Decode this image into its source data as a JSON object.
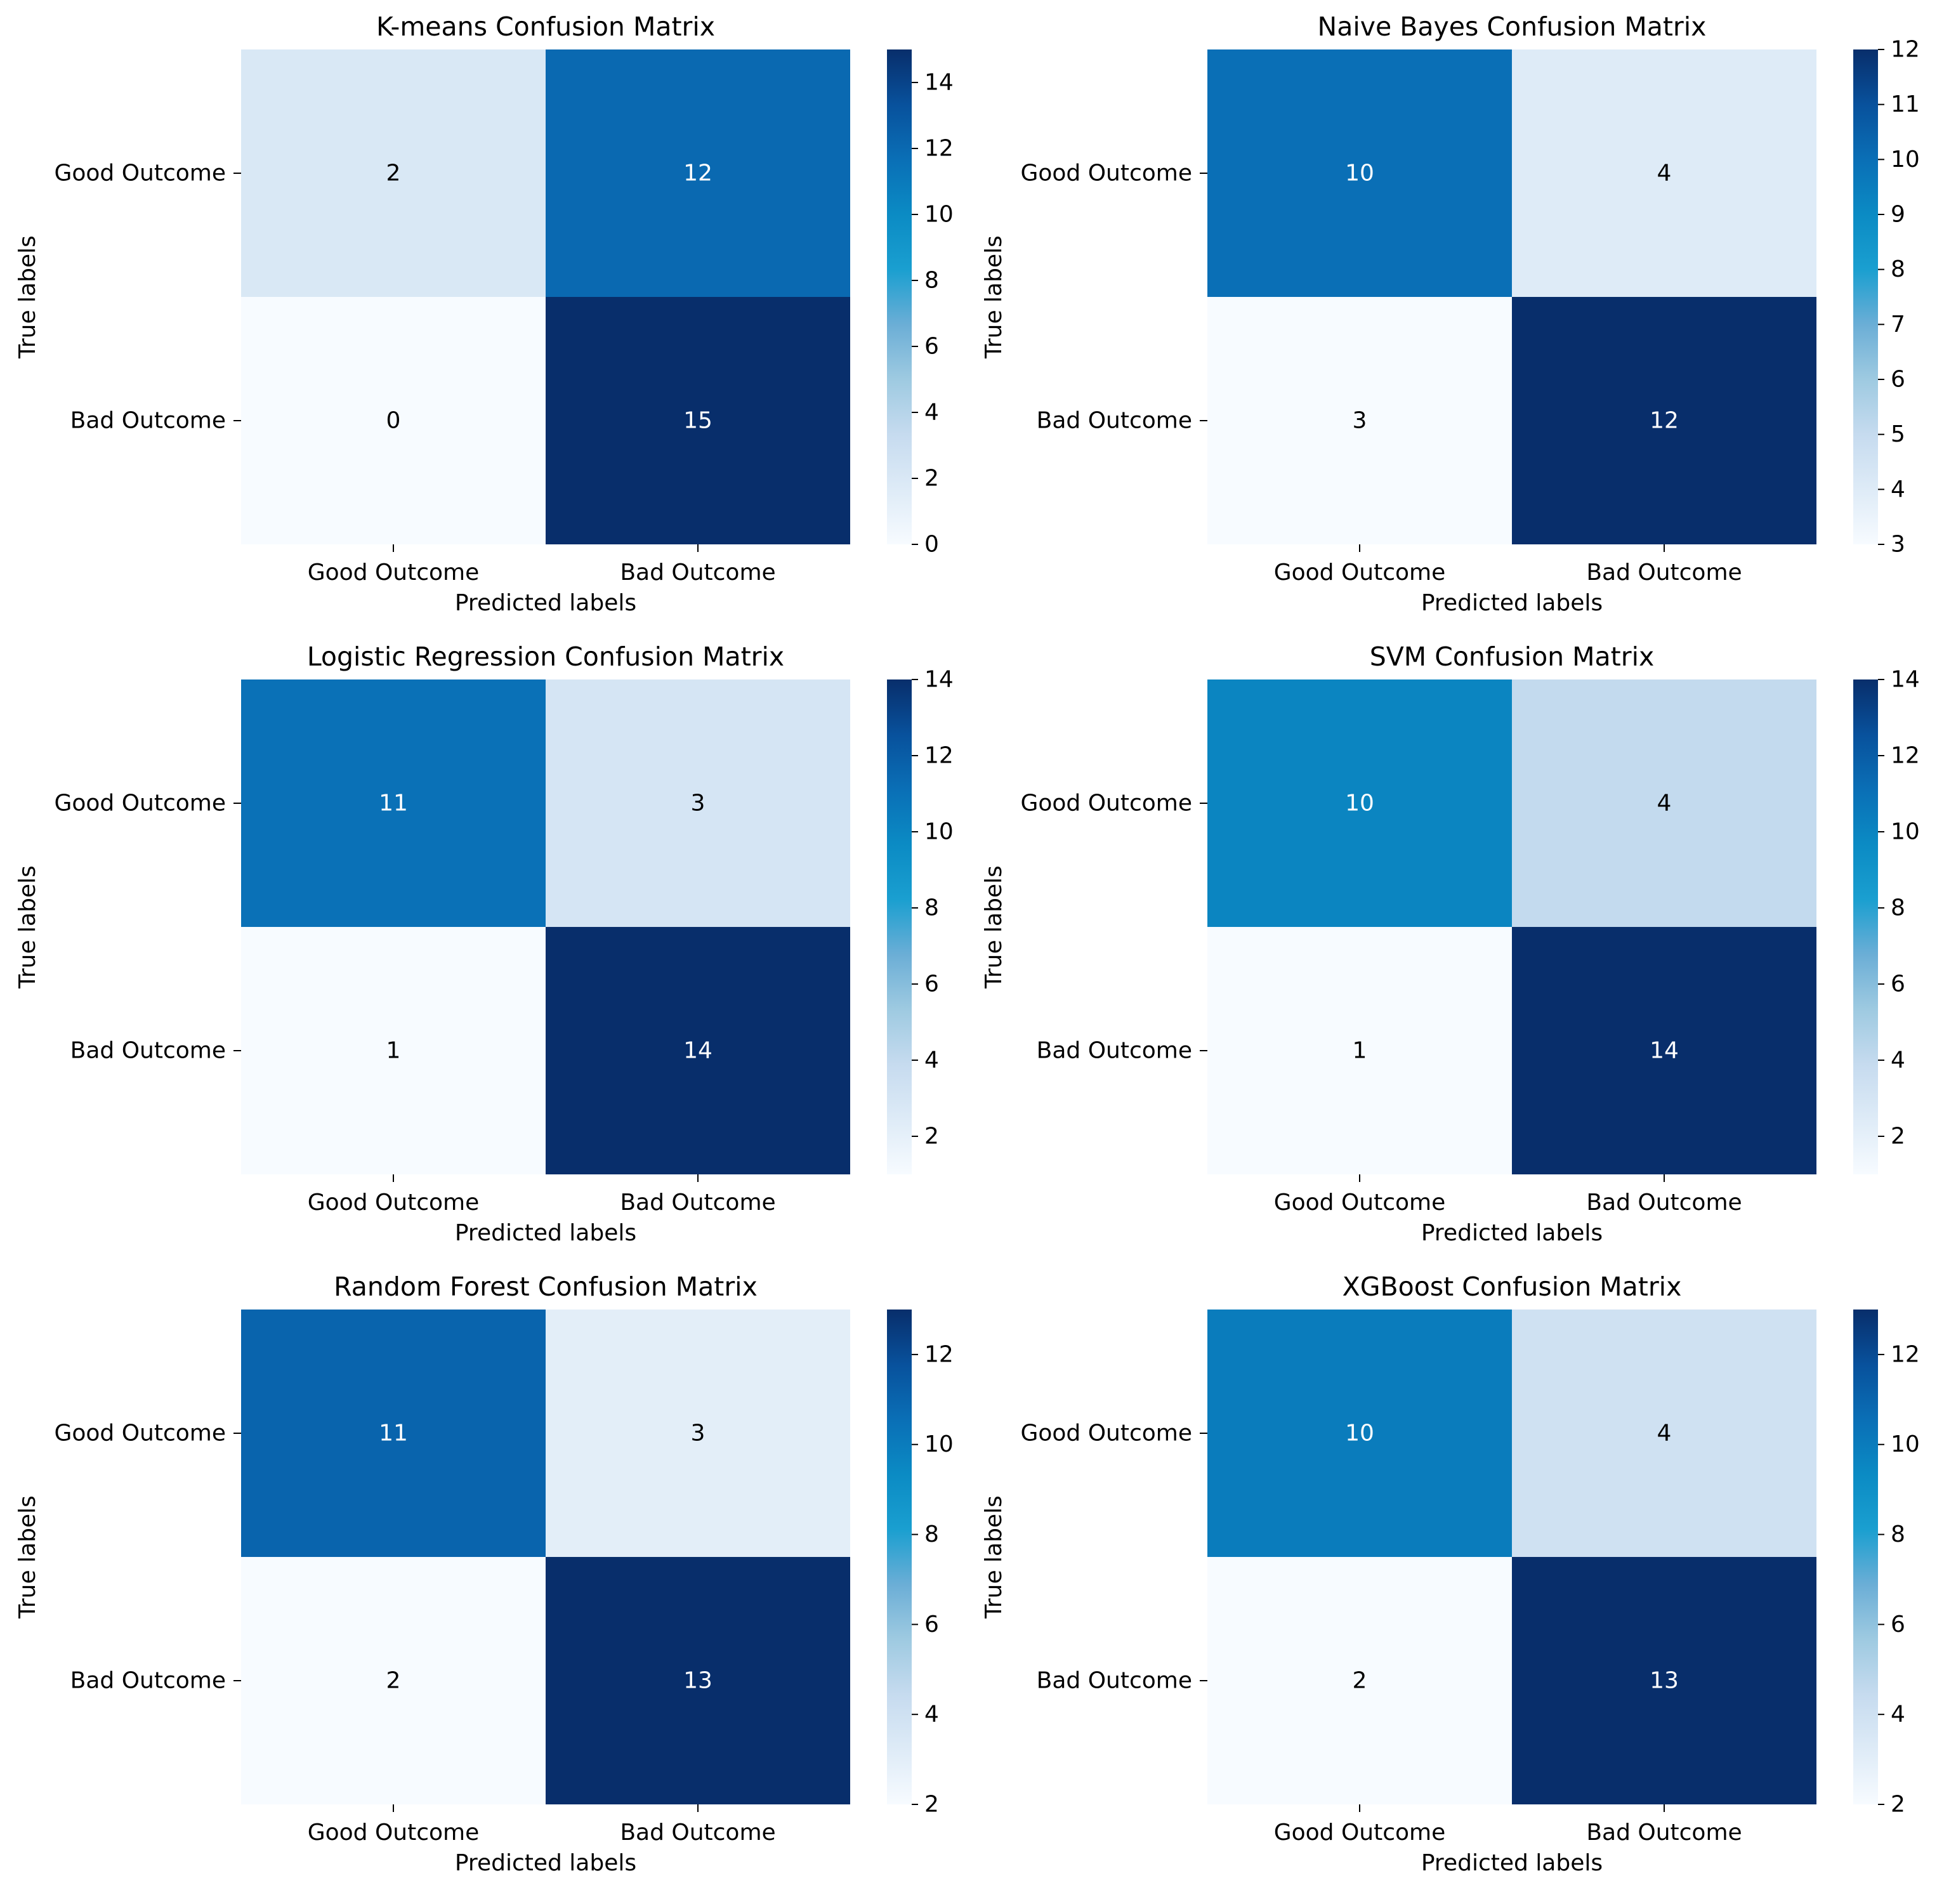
{
  "chart_data": [
    {
      "type": "heatmap",
      "title": "K-means Confusion Matrix",
      "xlabel": "Predicted labels",
      "ylabel": "True labels",
      "row_labels": [
        "Good Outcome",
        "Bad Outcome"
      ],
      "col_labels": [
        "Good Outcome",
        "Bad Outcome"
      ],
      "values": [
        [
          2,
          12
        ],
        [
          0,
          15
        ]
      ],
      "colorbar": {
        "range": [
          0,
          15
        ],
        "ticks": [
          0,
          2,
          4,
          6,
          8,
          10,
          12,
          14
        ]
      },
      "colormap": "Blues"
    },
    {
      "type": "heatmap",
      "title": "Naive Bayes Confusion Matrix",
      "xlabel": "Predicted labels",
      "ylabel": "True labels",
      "row_labels": [
        "Good Outcome",
        "Bad Outcome"
      ],
      "col_labels": [
        "Good Outcome",
        "Bad Outcome"
      ],
      "values": [
        [
          10,
          4
        ],
        [
          3,
          12
        ]
      ],
      "colorbar": {
        "range": [
          3,
          12
        ],
        "ticks": [
          3,
          4,
          5,
          6,
          7,
          8,
          9,
          10,
          11,
          12
        ]
      },
      "colormap": "Blues"
    },
    {
      "type": "heatmap",
      "title": "Logistic Regression Confusion Matrix",
      "xlabel": "Predicted labels",
      "ylabel": "True labels",
      "row_labels": [
        "Good Outcome",
        "Bad Outcome"
      ],
      "col_labels": [
        "Good Outcome",
        "Bad Outcome"
      ],
      "values": [
        [
          11,
          3
        ],
        [
          1,
          14
        ]
      ],
      "colorbar": {
        "range": [
          1,
          14
        ],
        "ticks": [
          2,
          4,
          6,
          8,
          10,
          12,
          14
        ]
      },
      "colormap": "Blues"
    },
    {
      "type": "heatmap",
      "title": "SVM Confusion Matrix",
      "xlabel": "Predicted labels",
      "ylabel": "True labels",
      "row_labels": [
        "Good Outcome",
        "Bad Outcome"
      ],
      "col_labels": [
        "Good Outcome",
        "Bad Outcome"
      ],
      "values": [
        [
          10,
          4
        ],
        [
          1,
          14
        ]
      ],
      "colorbar": {
        "range": [
          1,
          14
        ],
        "ticks": [
          2,
          4,
          6,
          8,
          10,
          12,
          14
        ]
      },
      "colormap": "Blues"
    },
    {
      "type": "heatmap",
      "title": "Random Forest Confusion Matrix",
      "xlabel": "Predicted labels",
      "ylabel": "True labels",
      "row_labels": [
        "Good Outcome",
        "Bad Outcome"
      ],
      "col_labels": [
        "Good Outcome",
        "Bad Outcome"
      ],
      "values": [
        [
          11,
          3
        ],
        [
          2,
          13
        ]
      ],
      "colorbar": {
        "range": [
          2,
          13
        ],
        "ticks": [
          2,
          4,
          6,
          8,
          10,
          12
        ]
      },
      "colormap": "Blues"
    },
    {
      "type": "heatmap",
      "title": "XGBoost Confusion Matrix",
      "xlabel": "Predicted labels",
      "ylabel": "True labels",
      "row_labels": [
        "Good Outcome",
        "Bad Outcome"
      ],
      "col_labels": [
        "Good Outcome",
        "Bad Outcome"
      ],
      "values": [
        [
          10,
          4
        ],
        [
          2,
          13
        ]
      ],
      "colorbar": {
        "range": [
          2,
          13
        ],
        "ticks": [
          2,
          4,
          6,
          8,
          10,
          12
        ]
      },
      "colormap": "Blues"
    }
  ],
  "colors": {
    "colormap_stops": [
      "#f7fbff",
      "#deebf7",
      "#c6dbef",
      "#9ecae1",
      "#6baed6",
      "#1a9fd0",
      "#0b8bc4",
      "#0a6fb6",
      "#08519c",
      "#082e6b"
    ],
    "text_dark": "#000000",
    "text_light": "#ffffff"
  }
}
